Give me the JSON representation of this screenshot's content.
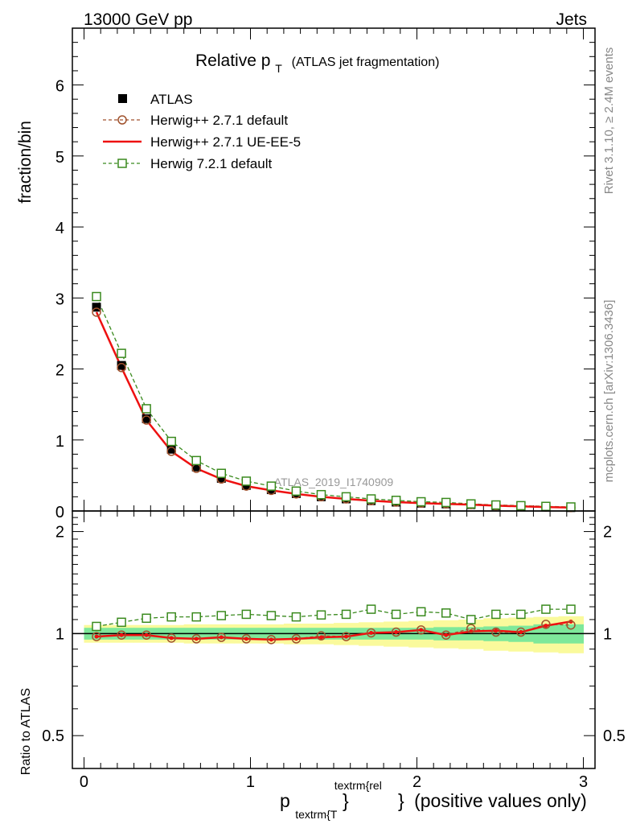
{
  "header": {
    "left": "13000 GeV pp",
    "right": "Jets"
  },
  "side_labels": {
    "rivet": "Rivet 3.1.10, ≥ 2.4M events",
    "mcplots": "mcplots.cern.ch [arXiv:1306.3436]"
  },
  "title": {
    "main": "Relative p",
    "sub": "T",
    "suffix": "(ATLAS jet fragmentation)"
  },
  "watermark": "ATLAS_2019_I1740909",
  "xlabel": {
    "p": "p",
    "sub": "textrm{T",
    "sup": "textrm{rel",
    "brace": "}",
    "rest": "(positive values only)"
  },
  "colors": {
    "atlas": "#000000",
    "herwig_default": "#a0522d",
    "herwig_ueee5": "#ee1111",
    "herwig72": "#3a8a1e",
    "band_inner": "#7ee89a",
    "band_outer": "#fafa9c"
  },
  "chart_data": [
    {
      "type": "line",
      "ylabel": "fraction/bin",
      "xlim": [
        -0.07,
        3.07
      ],
      "ylim": [
        0,
        6.8
      ],
      "yticks": [
        0,
        1,
        2,
        3,
        4,
        5,
        6
      ],
      "ytick_labels": [
        "0",
        "1",
        "2",
        "3",
        "4",
        "5",
        "6"
      ],
      "x": [
        0.075,
        0.225,
        0.375,
        0.525,
        0.675,
        0.825,
        0.975,
        1.125,
        1.275,
        1.425,
        1.575,
        1.725,
        1.875,
        2.025,
        2.175,
        2.325,
        2.475,
        2.625,
        2.775,
        2.925
      ],
      "legend": [
        "ATLAS",
        "Herwig++ 2.7.1 default",
        "Herwig++ 2.7.1 UE-EE-5",
        "Herwig 7.2.1 default"
      ],
      "series": [
        {
          "name": "ATLAS",
          "values": [
            2.87,
            2.05,
            1.3,
            0.87,
            0.62,
            0.46,
            0.36,
            0.3,
            0.245,
            0.2,
            0.17,
            0.145,
            0.125,
            0.11,
            0.1,
            0.09,
            0.075,
            0.065,
            0.055,
            0.048
          ]
        },
        {
          "name": "Herwig++ 2.7.1 default",
          "values": [
            2.8,
            2.02,
            1.28,
            0.84,
            0.6,
            0.45,
            0.35,
            0.29,
            0.24,
            0.2,
            0.17,
            0.145,
            0.125,
            0.11,
            0.1,
            0.09,
            0.075,
            0.065,
            0.055,
            0.048
          ]
        },
        {
          "name": "Herwig++ 2.7.1 UE-EE-5",
          "values": [
            2.8,
            2.02,
            1.28,
            0.84,
            0.6,
            0.45,
            0.35,
            0.29,
            0.24,
            0.2,
            0.17,
            0.145,
            0.125,
            0.11,
            0.1,
            0.09,
            0.075,
            0.065,
            0.055,
            0.048
          ]
        },
        {
          "name": "Herwig 7.2.1 default",
          "values": [
            3.02,
            2.22,
            1.44,
            0.98,
            0.71,
            0.53,
            0.42,
            0.35,
            0.28,
            0.23,
            0.2,
            0.17,
            0.15,
            0.13,
            0.12,
            0.1,
            0.085,
            0.075,
            0.065,
            0.057
          ]
        }
      ]
    },
    {
      "type": "line",
      "ylabel": "Ratio to ATLAS",
      "xlim": [
        -0.07,
        3.07
      ],
      "ylim": [
        0.4,
        2.3
      ],
      "yticks": [
        0.5,
        1,
        2
      ],
      "ytick_labels": [
        "0.5",
        "1",
        "2"
      ],
      "xticks": [
        0,
        1,
        2,
        3
      ],
      "xtick_labels": [
        "0",
        "1",
        "2",
        "3"
      ],
      "x": [
        0.075,
        0.225,
        0.375,
        0.525,
        0.675,
        0.825,
        0.975,
        1.125,
        1.275,
        1.425,
        1.575,
        1.725,
        1.875,
        2.025,
        2.175,
        2.325,
        2.475,
        2.625,
        2.775,
        2.925
      ],
      "band_inner": [
        0.04,
        0.04,
        0.04,
        0.04,
        0.04,
        0.04,
        0.04,
        0.04,
        0.04,
        0.04,
        0.04,
        0.04,
        0.04,
        0.04,
        0.045,
        0.045,
        0.05,
        0.055,
        0.065,
        0.065
      ],
      "band_outer": [
        0.06,
        0.06,
        0.06,
        0.06,
        0.065,
        0.065,
        0.065,
        0.065,
        0.07,
        0.07,
        0.075,
        0.08,
        0.085,
        0.09,
        0.095,
        0.1,
        0.11,
        0.115,
        0.12,
        0.125
      ],
      "series": [
        {
          "name": "Herwig++ 2.7.1 default",
          "values": [
            0.98,
            0.99,
            0.99,
            0.97,
            0.965,
            0.975,
            0.965,
            0.96,
            0.965,
            0.985,
            0.98,
            1.005,
            1.01,
            1.025,
            0.99,
            1.035,
            1.01,
            1.01,
            1.065,
            1.06
          ]
        },
        {
          "name": "Herwig++ 2.7.1 UE-EE-5",
          "values": [
            0.98,
            0.99,
            0.99,
            0.97,
            0.965,
            0.975,
            0.965,
            0.96,
            0.965,
            0.975,
            0.98,
            1.005,
            1.01,
            1.025,
            0.99,
            1.015,
            1.02,
            1.01,
            1.055,
            1.085
          ]
        },
        {
          "name": "Herwig 7.2.1 default",
          "values": [
            1.05,
            1.08,
            1.11,
            1.12,
            1.12,
            1.13,
            1.14,
            1.13,
            1.12,
            1.135,
            1.14,
            1.18,
            1.14,
            1.16,
            1.15,
            1.1,
            1.14,
            1.14,
            1.18,
            1.18
          ]
        }
      ]
    }
  ]
}
